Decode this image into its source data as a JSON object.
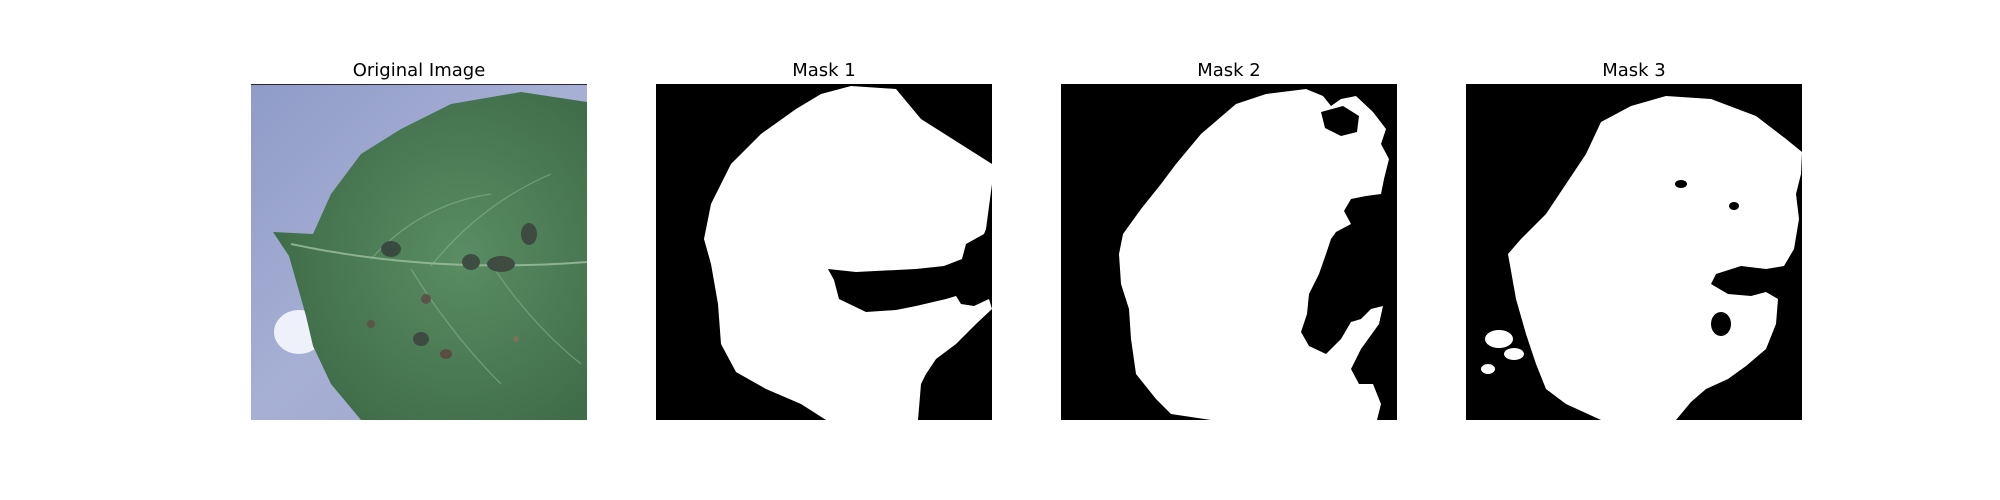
{
  "panels": [
    {
      "title": "Original Image",
      "kind": "leaf-photo"
    },
    {
      "title": "Mask 1",
      "kind": "binary-mask"
    },
    {
      "title": "Mask 2",
      "kind": "binary-mask"
    },
    {
      "title": "Mask 3",
      "kind": "binary-mask"
    }
  ],
  "colors": {
    "background": "#9aa4cc",
    "leaf": "#4d7d56",
    "leaf_dark": "#3e6b48",
    "mask_fg": "#ffffff",
    "mask_bg": "#000000"
  }
}
